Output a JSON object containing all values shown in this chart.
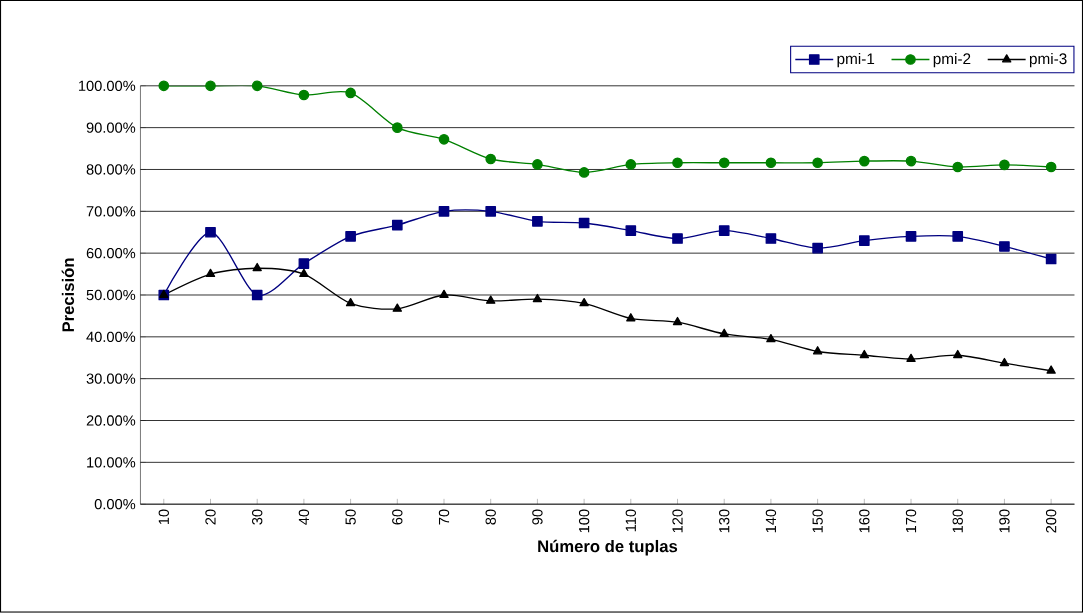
{
  "chart_data": {
    "type": "line",
    "xlabel": "Número de tuplas",
    "ylabel": "Precisión",
    "categories": [
      "10",
      "20",
      "30",
      "40",
      "50",
      "60",
      "70",
      "80",
      "90",
      "100",
      "110",
      "120",
      "130",
      "140",
      "150",
      "160",
      "170",
      "180",
      "190",
      "200"
    ],
    "ylim": [
      0,
      100
    ],
    "yticks": [
      {
        "value": 0,
        "label": "0.00%"
      },
      {
        "value": 10,
        "label": "10.00%"
      },
      {
        "value": 20,
        "label": "20.00%"
      },
      {
        "value": 30,
        "label": "30.00%"
      },
      {
        "value": 40,
        "label": "40.00%"
      },
      {
        "value": 50,
        "label": "50.00%"
      },
      {
        "value": 60,
        "label": "60.00%"
      },
      {
        "value": 70,
        "label": "70.00%"
      },
      {
        "value": 80,
        "label": "80.00%"
      },
      {
        "value": 90,
        "label": "90.00%"
      },
      {
        "value": 100,
        "label": "100.00%"
      }
    ],
    "grid": "y",
    "legend": "top right",
    "line_style": "solid",
    "series": [
      {
        "name": "pmi-1",
        "color": "#000080",
        "marker": "square",
        "values": [
          50,
          65,
          50,
          57.5,
          64,
          66.7,
          70,
          70,
          67.6,
          67.2,
          65.4,
          63.5,
          65.4,
          63.5,
          61.2,
          63,
          64,
          64,
          61.6,
          58.6
        ]
      },
      {
        "name": "pmi-2",
        "color": "#008000",
        "marker": "circle",
        "values": [
          100,
          100,
          100,
          97.8,
          98.3,
          90,
          87.2,
          82.5,
          81.2,
          79.3,
          81.2,
          81.6,
          81.6,
          81.6,
          81.6,
          82,
          82,
          80.6,
          81.1,
          80.6
        ]
      },
      {
        "name": "pmi-3",
        "color": "#000000",
        "marker": "triangle",
        "values": [
          50,
          55,
          56.4,
          55,
          48,
          46.7,
          50,
          48.6,
          49,
          48,
          44.4,
          43.5,
          40.7,
          39.4,
          36.5,
          35.6,
          34.7,
          35.6,
          33.7,
          31.9
        ]
      }
    ]
  }
}
